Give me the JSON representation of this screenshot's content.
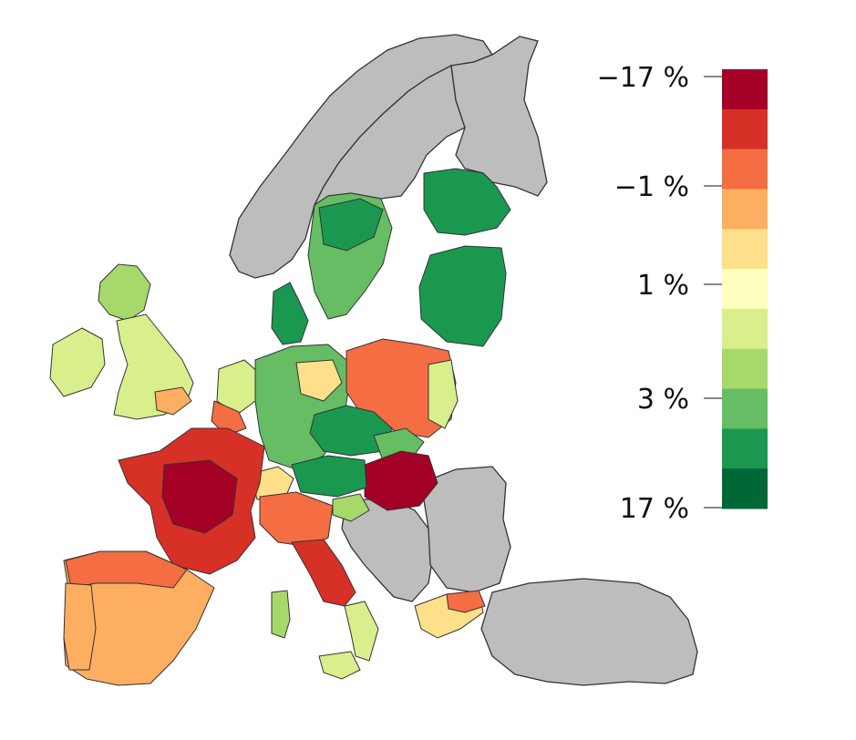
{
  "colors": {
    "no_data": "#bdbdbd",
    "border": "#333333",
    "red_dark": "#a50026",
    "red": "#d73027",
    "orange": "#f46d43",
    "light_orange": "#fdae61",
    "pale_yellow": "#fee08b",
    "cream": "#ffffbf",
    "light_green": "#d9ef8b",
    "mid_green": "#a6d96a",
    "green": "#66bd63",
    "dark_green": "#1a9850",
    "darkest_green": "#006837"
  },
  "legend": {
    "ticks": [
      {
        "label": "−17 %"
      },
      {
        "label": "−1 %"
      },
      {
        "label": "1 %"
      },
      {
        "label": "3 %"
      },
      {
        "label": "17 %"
      }
    ]
  }
}
